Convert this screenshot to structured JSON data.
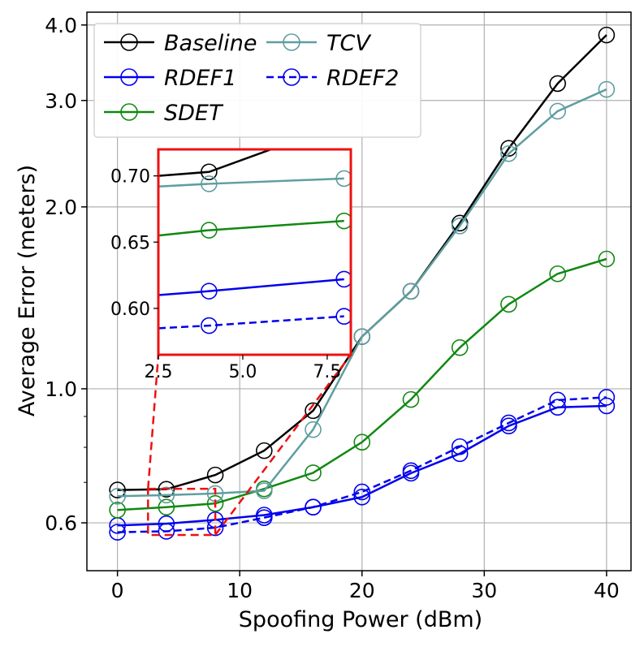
{
  "chart_data": {
    "type": "line",
    "title": "",
    "xlabel": "Spoofing Power (dBm)",
    "ylabel": "Average Error (meters)",
    "xlim": [
      -2.5,
      42
    ],
    "ylim": [
      0.5,
      4.2
    ],
    "yscale": "log",
    "xticks": [
      "0",
      "10",
      "20",
      "30",
      "40"
    ],
    "yticks": [
      "0.6",
      "1.0",
      "2.0",
      "3.0",
      "4.0"
    ],
    "grid": true,
    "legend": {
      "placement": "top-left",
      "ncol": 2
    },
    "x": [
      0,
      4,
      8,
      12,
      16,
      20,
      24,
      28,
      32,
      36,
      40
    ],
    "series": [
      {
        "name": "Baseline",
        "legend_label": "Baseline",
        "color": "#000000",
        "dash": false,
        "values": [
          0.68,
          0.682,
          0.72,
          0.79,
          0.92,
          1.22,
          1.45,
          1.88,
          2.5,
          3.2,
          3.85
        ]
      },
      {
        "name": "RDEF1",
        "legend_label": "RDEF1",
        "color": "#0000ee",
        "dash": false,
        "values": [
          0.594,
          0.598,
          0.607,
          0.618,
          0.637,
          0.662,
          0.725,
          0.781,
          0.868,
          0.932,
          0.937
        ]
      },
      {
        "name": "SDET",
        "legend_label": "SDET",
        "color": "#118811",
        "dash": false,
        "values": [
          0.63,
          0.637,
          0.646,
          0.683,
          0.726,
          0.816,
          0.96,
          1.17,
          1.38,
          1.55,
          1.64
        ]
      },
      {
        "name": "TCV",
        "legend_label": "TCV",
        "color": "#5f9ea0",
        "dash": false,
        "values": [
          0.664,
          0.667,
          0.671,
          0.678,
          0.856,
          1.22,
          1.45,
          1.86,
          2.45,
          2.88,
          3.13
        ]
      },
      {
        "name": "RDEF2",
        "legend_label": "RDEF2",
        "color": "#0000ee",
        "dash": true,
        "values": [
          0.579,
          0.581,
          0.589,
          0.612,
          0.637,
          0.675,
          0.732,
          0.802,
          0.878,
          0.958,
          0.968
        ]
      }
    ],
    "inset": {
      "xlim": [
        2.5,
        8.2
      ],
      "ylim": [
        0.565,
        0.72
      ],
      "xticks": [
        "2.5",
        "5.0",
        "7.5"
      ],
      "yticks": [
        "0.60",
        "0.65",
        "0.70"
      ],
      "zoom_box": {
        "x0": 2.5,
        "x1": 8.0,
        "y0": 0.573,
        "y1": 0.683
      },
      "series": [
        {
          "name": "Baseline",
          "values": [
            0.7,
            0.703,
            0.74
          ]
        },
        {
          "name": "TCV",
          "values": [
            0.692,
            0.694,
            0.698
          ]
        },
        {
          "name": "SDET",
          "values": [
            0.655,
            0.659,
            0.666
          ]
        },
        {
          "name": "RDEF1",
          "values": [
            0.61,
            0.613,
            0.622
          ]
        },
        {
          "name": "RDEF2",
          "values": [
            0.585,
            0.587,
            0.594
          ]
        }
      ]
    }
  }
}
